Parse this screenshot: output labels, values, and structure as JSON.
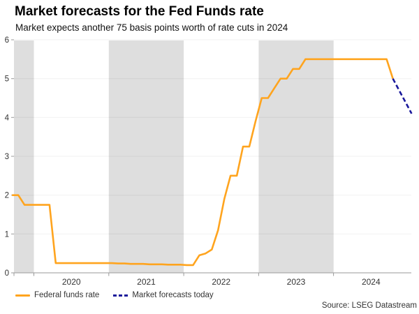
{
  "legend": {
    "items": [
      {
        "label": "Federal funds rate",
        "color": "#FFA41E",
        "style": "solid"
      },
      {
        "label": "Market forecasts today",
        "color": "#1A199B",
        "style": "dashed"
      }
    ]
  },
  "source": "Source: LSEG Datastream",
  "chart_data": {
    "type": "line",
    "title": "Market forecasts for the Fed Funds rate",
    "subtitle": "Market expects another 75 basis points worth of rate cuts in 2024",
    "xlabel": "",
    "ylabel": "",
    "ylim": [
      0,
      6
    ],
    "yticks": [
      0,
      1,
      2,
      3,
      4,
      5,
      6
    ],
    "ytick_labels": [
      "0",
      "1",
      "2",
      "3",
      "4",
      "5",
      "6"
    ],
    "xlim_years": [
      2019.734,
      2025.038
    ],
    "xtick_years": [
      2019.734,
      2020,
      2021,
      2022,
      2023,
      2024
    ],
    "year_label_years": [
      2020,
      2021,
      2022,
      2023,
      2024
    ],
    "year_labels": [
      "2020",
      "2021",
      "2022",
      "2023",
      "2024"
    ],
    "shaded_bands": [
      [
        2019.734,
        2020
      ],
      [
        2021,
        2022
      ],
      [
        2023,
        2024
      ]
    ],
    "grid": "horizontal",
    "legend_position": "bottom-left",
    "colors": {
      "band": "#DEDEDE",
      "axis": "#999999",
      "tick_label": "#333333"
    },
    "series": [
      {
        "name": "Federal funds rate",
        "color": "#FFA41E",
        "style": "solid",
        "points": [
          [
            "2019-09",
            2.0
          ],
          [
            "2019-10",
            2.0
          ],
          [
            "2019-11",
            1.75
          ],
          [
            "2019-12",
            1.75
          ],
          [
            "2020-01",
            1.75
          ],
          [
            "2020-02",
            1.75
          ],
          [
            "2020-03",
            1.75
          ],
          [
            "2020-04",
            0.25
          ],
          [
            "2020-05",
            0.25
          ],
          [
            "2020-06",
            0.25
          ],
          [
            "2020-07",
            0.25
          ],
          [
            "2020-08",
            0.25
          ],
          [
            "2020-09",
            0.25
          ],
          [
            "2020-10",
            0.25
          ],
          [
            "2020-11",
            0.25
          ],
          [
            "2020-12",
            0.25
          ],
          [
            "2021-01",
            0.25
          ],
          [
            "2021-02",
            0.24
          ],
          [
            "2021-03",
            0.24
          ],
          [
            "2021-04",
            0.23
          ],
          [
            "2021-05",
            0.23
          ],
          [
            "2021-06",
            0.23
          ],
          [
            "2021-07",
            0.22
          ],
          [
            "2021-08",
            0.22
          ],
          [
            "2021-09",
            0.22
          ],
          [
            "2021-10",
            0.21
          ],
          [
            "2021-11",
            0.21
          ],
          [
            "2021-12",
            0.21
          ],
          [
            "2022-01",
            0.2
          ],
          [
            "2022-02",
            0.2
          ],
          [
            "2022-03",
            0.45
          ],
          [
            "2022-04",
            0.5
          ],
          [
            "2022-05",
            0.6
          ],
          [
            "2022-06",
            1.1
          ],
          [
            "2022-07",
            1.9
          ],
          [
            "2022-08",
            2.5
          ],
          [
            "2022-09",
            2.5
          ],
          [
            "2022-10",
            3.25
          ],
          [
            "2022-11",
            3.25
          ],
          [
            "2022-12",
            3.9
          ],
          [
            "2023-01",
            4.5
          ],
          [
            "2023-02",
            4.5
          ],
          [
            "2023-03",
            4.75
          ],
          [
            "2023-04",
            5.0
          ],
          [
            "2023-05",
            5.0
          ],
          [
            "2023-06",
            5.25
          ],
          [
            "2023-07",
            5.25
          ],
          [
            "2023-08",
            5.5
          ],
          [
            "2023-09",
            5.5
          ],
          [
            "2023-10",
            5.5
          ],
          [
            "2023-11",
            5.5
          ],
          [
            "2023-12",
            5.5
          ],
          [
            "2024-01",
            5.5
          ],
          [
            "2024-02",
            5.5
          ],
          [
            "2024-03",
            5.5
          ],
          [
            "2024-04",
            5.5
          ],
          [
            "2024-05",
            5.5
          ],
          [
            "2024-06",
            5.5
          ],
          [
            "2024-07",
            5.5
          ],
          [
            "2024-08",
            5.5
          ],
          [
            "2024-09",
            5.5
          ],
          [
            "2024-10",
            5.0
          ]
        ]
      },
      {
        "name": "Market forecasts today",
        "color": "#1A199B",
        "style": "dashed",
        "points": [
          [
            "2024-10",
            5.0
          ],
          [
            "2024-11",
            4.7
          ],
          [
            "2024-12",
            4.4
          ],
          [
            "2025-01",
            4.1
          ]
        ]
      }
    ],
    "source": "Source: LSEG Datastream"
  }
}
